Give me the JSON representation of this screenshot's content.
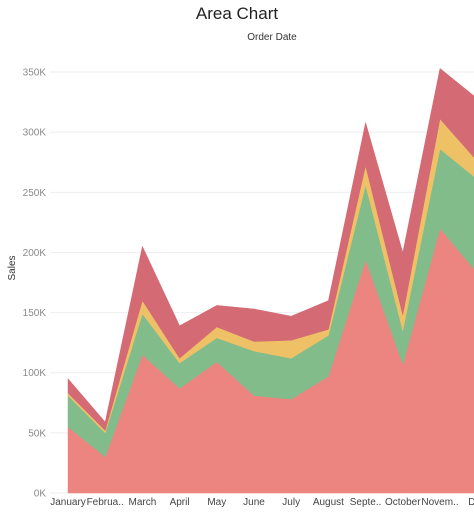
{
  "title": "Area Chart",
  "subtitle": "Order Date",
  "colors": {
    "series_1": "#ec8580",
    "series_2": "#82bc8a",
    "series_3": "#efc166",
    "series_4": "#d46a74",
    "gridline": "#eeeeee"
  },
  "chart_data": {
    "type": "area",
    "stacked": true,
    "title": "Area Chart",
    "subtitle": "Order Date",
    "xlabel": "",
    "ylabel": "Sales",
    "ylim": [
      0,
      370000
    ],
    "yticks": [
      0,
      50000,
      100000,
      150000,
      200000,
      250000,
      300000,
      350000
    ],
    "ytick_labels": [
      "0K",
      "50K",
      "100K",
      "150K",
      "200K",
      "250K",
      "300K",
      "350K"
    ],
    "categories": [
      "January",
      "Februa..",
      "March",
      "April",
      "May",
      "June",
      "July",
      "August",
      "Septe..",
      "October",
      "Novem..",
      "Dec"
    ],
    "grid": false,
    "legend": "none",
    "series": [
      {
        "color": "#ec8580",
        "values": [
          55000,
          30000,
          115000,
          87000,
          109000,
          81000,
          78000,
          97000,
          194000,
          107000,
          220000,
          183000
        ]
      },
      {
        "color": "#82bc8a",
        "values": [
          26000,
          20000,
          34000,
          21000,
          20000,
          37000,
          34000,
          34000,
          62000,
          28000,
          66000,
          78000
        ]
      },
      {
        "color": "#efc166",
        "values": [
          2000,
          2000,
          11000,
          4000,
          9000,
          8000,
          15000,
          5000,
          16000,
          13000,
          25000,
          15000
        ]
      },
      {
        "color": "#d46a74",
        "values": [
          12000,
          7000,
          45000,
          27000,
          18000,
          27000,
          20000,
          24000,
          36000,
          52000,
          42000,
          52000
        ]
      }
    ]
  }
}
